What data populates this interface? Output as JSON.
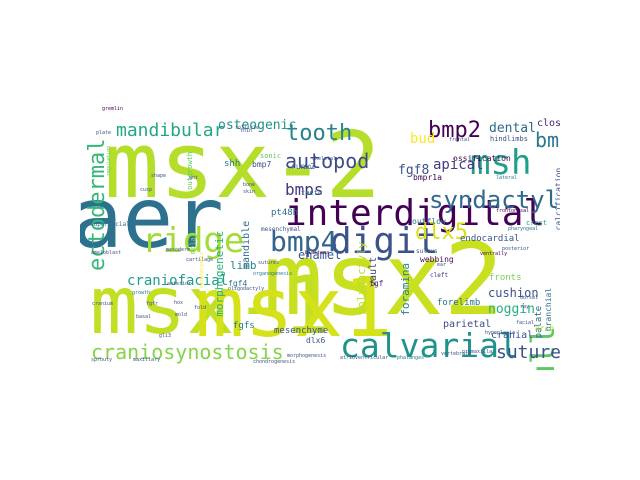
{
  "wordcloud": {
    "background": "#ffffff",
    "palette": "viridis",
    "words": [
      {
        "text": "msx-2",
        "color": "#b5de2b"
      },
      {
        "text": "msx2",
        "color": "#c8e020"
      },
      {
        "text": "aer",
        "color": "#2c728e"
      },
      {
        "text": "msx-1",
        "color": "#c2df23"
      },
      {
        "text": "interdigital",
        "color": "#440154"
      },
      {
        "text": "msx1",
        "color": "#d5e21a"
      },
      {
        "text": "calvarial",
        "color": "#20928c"
      },
      {
        "text": "digit",
        "color": "#3b528b"
      },
      {
        "text": "bmp4",
        "color": "#32648e"
      },
      {
        "text": "skull",
        "color": "#5ec962"
      },
      {
        "text": "msh",
        "color": "#1f9e89"
      },
      {
        "text": "ridge",
        "color": "#a5db36"
      },
      {
        "text": "craniosynostosis",
        "color": "#86d549"
      },
      {
        "text": "syndactyly",
        "color": "#31688e"
      },
      {
        "text": "ectodermal",
        "color": "#35b779"
      },
      {
        "text": "bmp2",
        "color": "#440154"
      },
      {
        "text": "tooth",
        "color": "#26828e"
      },
      {
        "text": "suture",
        "color": "#3b528b"
      },
      {
        "text": "dlx5",
        "color": "#d8e219"
      },
      {
        "text": "mandibular",
        "color": "#22a884"
      },
      {
        "text": "bmp",
        "color": "#2a788e"
      },
      {
        "text": "autopod",
        "color": "#3e4989"
      },
      {
        "text": "bmps",
        "color": "#46327e"
      },
      {
        "text": "craniofacial",
        "color": "#1f9e89"
      },
      {
        "text": "bud",
        "color": "#fde725"
      },
      {
        "text": "osteogenic",
        "color": "#21918c"
      },
      {
        "text": "apical",
        "color": "#443983"
      },
      {
        "text": "dental",
        "color": "#31688e"
      },
      {
        "text": "closure",
        "color": "#482677"
      },
      {
        "text": "fgf8",
        "color": "#3b528b"
      },
      {
        "text": "enamel",
        "color": "#38598c"
      },
      {
        "text": "morphogenetic",
        "color": "#2ab07f"
      },
      {
        "text": "limb",
        "color": "#25858e"
      },
      {
        "text": "mandible",
        "color": "#2e6e8e"
      },
      {
        "text": "cushion",
        "color": "#3b528b"
      },
      {
        "text": "noggin",
        "color": "#29af7f"
      },
      {
        "text": "foramina",
        "color": "#25838e"
      },
      {
        "text": "polydactyly",
        "color": "#b8de29"
      },
      {
        "text": "forelimb",
        "color": "#2d708e"
      },
      {
        "text": "fronts",
        "color": "#7ad151"
      },
      {
        "text": "parietal",
        "color": "#3e4a89"
      },
      {
        "text": "vault",
        "color": "#3f4788"
      },
      {
        "text": "cranial",
        "color": "#3b528b"
      },
      {
        "text": "palate",
        "color": "#31688e"
      },
      {
        "text": "branchial",
        "color": "#2c728e"
      },
      {
        "text": "arch",
        "color": "#a0da39"
      },
      {
        "text": "calcification",
        "color": "#3b528b"
      },
      {
        "text": "endocardial",
        "color": "#3b528b"
      },
      {
        "text": "ossification",
        "color": "#440154"
      },
      {
        "text": "outflow",
        "color": "#2a788e"
      },
      {
        "text": "shh",
        "color": "#2a788e"
      },
      {
        "text": "sonic",
        "color": "#5ec962"
      },
      {
        "text": "bmp7",
        "color": "#3b528b"
      },
      {
        "text": "runx2",
        "color": "#31688e"
      },
      {
        "text": "bmpr1a",
        "color": "#440154"
      },
      {
        "text": "pt48h",
        "color": "#2f6c8e"
      },
      {
        "text": "teeth",
        "color": "#2a788e"
      },
      {
        "text": "webbing",
        "color": "#471164"
      },
      {
        "text": "hindlimbs",
        "color": "#3b528b"
      },
      {
        "text": "outgrowth",
        "color": "#5ec962"
      },
      {
        "text": "fgf4",
        "color": "#2a788e"
      },
      {
        "text": "fgfs",
        "color": "#2a788e"
      },
      {
        "text": "fgf",
        "color": "#482475"
      },
      {
        "text": "mesenchyme",
        "color": "#3b528b"
      },
      {
        "text": "dlx6",
        "color": "#3b528b"
      },
      {
        "text": "crest",
        "color": "#20a386"
      },
      {
        "text": "mesenchymal",
        "color": "#3b528b"
      },
      {
        "text": "follicle",
        "color": "#3b528b"
      },
      {
        "text": "cleft",
        "color": "#472c7a"
      },
      {
        "text": "sulcus",
        "color": "#3b528b"
      },
      {
        "text": "molar",
        "color": "#7ad151"
      },
      {
        "text": "superficial",
        "color": "#31688e"
      },
      {
        "text": "cartilage",
        "color": "#3b528b"
      },
      {
        "text": "ameloblast",
        "color": "#3b528b"
      },
      {
        "text": "keratocystic",
        "color": "#fde725"
      },
      {
        "text": "oligodactyly",
        "color": "#3b528b"
      },
      {
        "text": "organogenesis",
        "color": "#2a788e"
      },
      {
        "text": "morphogenesis",
        "color": "#3b528b"
      },
      {
        "text": "chondrogenesis",
        "color": "#3b528b"
      },
      {
        "text": "phalanges",
        "color": "#2a788e"
      },
      {
        "text": "atrioventricular",
        "color": "#3b528b"
      },
      {
        "text": "blastema",
        "color": "#440154"
      },
      {
        "text": "vertebrate",
        "color": "#3b528b"
      },
      {
        "text": "premaxilla",
        "color": "#3b528b"
      },
      {
        "text": "frontonasal",
        "color": "#440154"
      },
      {
        "text": "pharyngeal",
        "color": "#2a788e"
      },
      {
        "text": "maxillary",
        "color": "#3b528b"
      },
      {
        "text": "anterior",
        "color": "#3b528b"
      },
      {
        "text": "posterior",
        "color": "#3b528b"
      },
      {
        "text": "cranium",
        "color": "#3b528b"
      },
      {
        "text": "hypoplasia",
        "color": "#3b528b"
      },
      {
        "text": "regulation",
        "color": "#5ec962"
      },
      {
        "text": "mesoderm",
        "color": "#3b528b"
      },
      {
        "text": "sprouty",
        "color": "#3b528b"
      },
      {
        "text": "ventrally",
        "color": "#440154"
      },
      {
        "text": "dorsal",
        "color": "#3b528b"
      },
      {
        "text": "lateral",
        "color": "#2a788e"
      },
      {
        "text": "frontal",
        "color": "#3b528b"
      },
      {
        "text": "gremlin",
        "color": "#440154"
      },
      {
        "text": "plate",
        "color": "#3b528b"
      },
      {
        "text": "shape",
        "color": "#3b528b"
      },
      {
        "text": "growth",
        "color": "#2a788e"
      },
      {
        "text": "facial",
        "color": "#3b528b"
      },
      {
        "text": "ray",
        "color": "#3b528b"
      },
      {
        "text": "ear",
        "color": "#3b528b"
      },
      {
        "text": "fold",
        "color": "#3b528b"
      },
      {
        "text": "mold",
        "color": "#3b528b"
      },
      {
        "text": "fgfr",
        "color": "#3b528b"
      },
      {
        "text": "gli3",
        "color": "#3b528b"
      },
      {
        "text": "hox",
        "color": "#3b528b"
      },
      {
        "text": "sutures",
        "color": "#3b528b"
      },
      {
        "text": "cell",
        "color": "#3b528b"
      },
      {
        "text": "bone",
        "color": "#3b528b"
      },
      {
        "text": "skin",
        "color": "#3b528b"
      },
      {
        "text": "thin",
        "color": "#3b528b"
      },
      {
        "text": "basal",
        "color": "#3b528b"
      },
      {
        "text": "cusp",
        "color": "#3b528b"
      },
      {
        "text": "wnt",
        "color": "#3b528b"
      },
      {
        "text": "skeletal",
        "color": "#3b528b"
      }
    ]
  }
}
